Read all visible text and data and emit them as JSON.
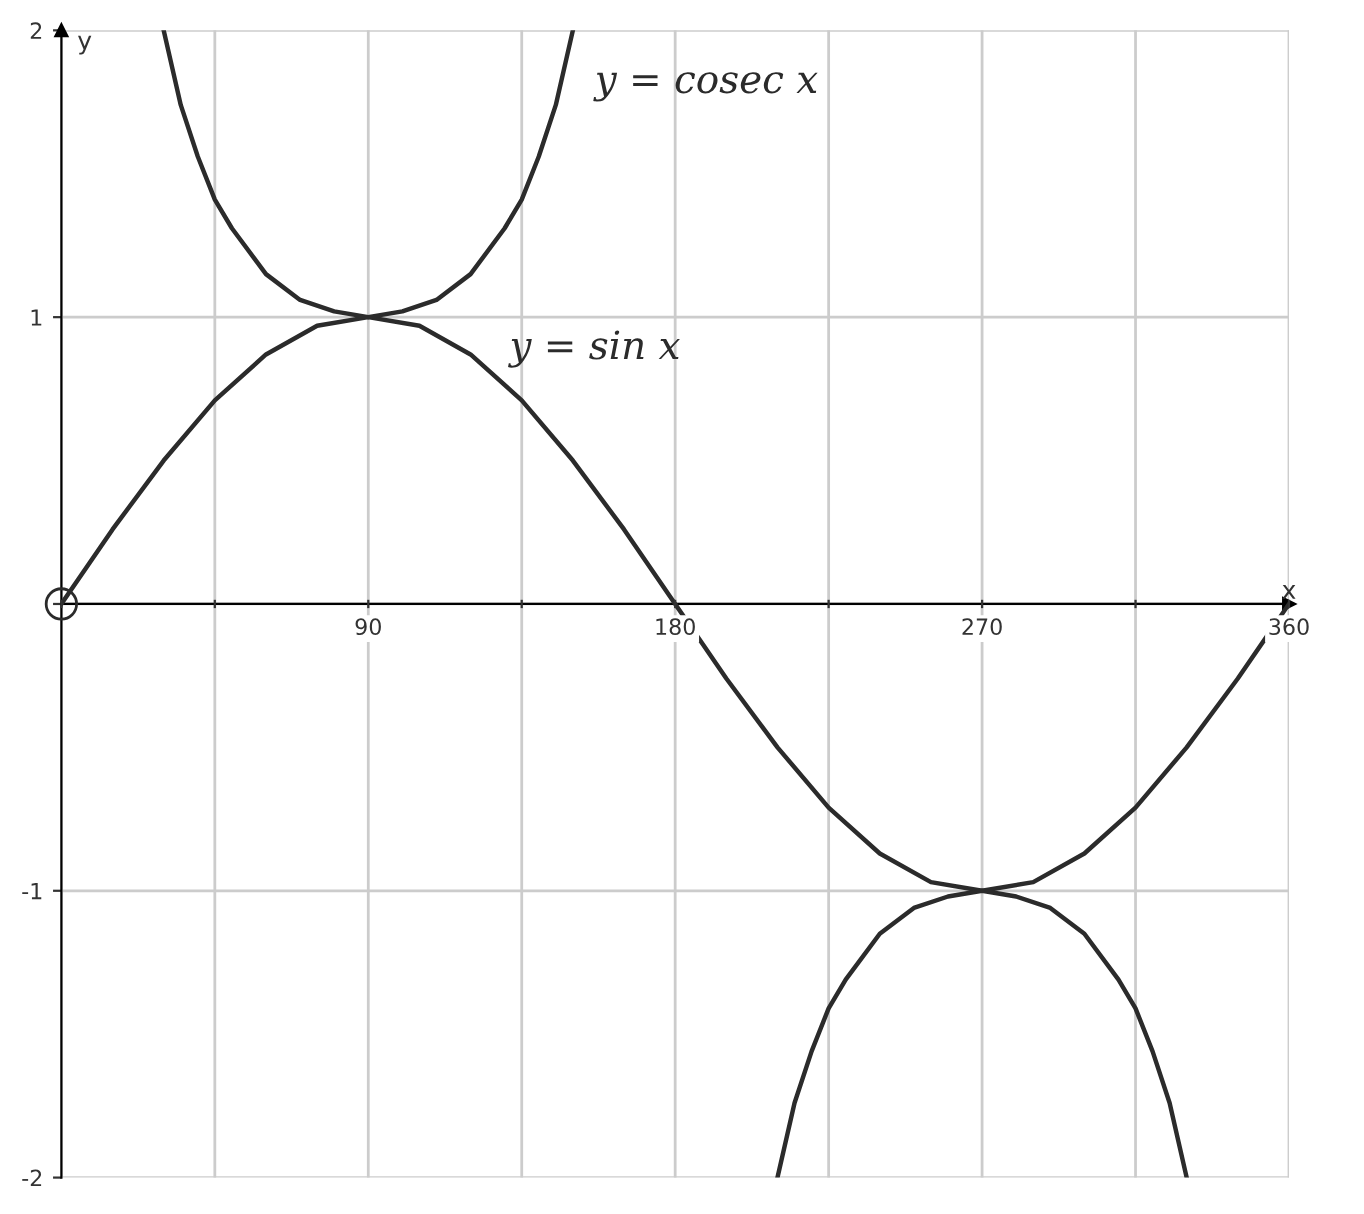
{
  "chart_data": {
    "type": "line",
    "xlabel": "x",
    "ylabel": "y",
    "xlim": [
      0,
      360
    ],
    "ylim": [
      -2,
      2
    ],
    "xticks": [
      {
        "value": 0,
        "label": null
      },
      {
        "value": 45,
        "label": null
      },
      90,
      {
        "value": 135,
        "label": null
      },
      180,
      {
        "value": 225,
        "label": null
      },
      270,
      {
        "value": 315,
        "label": null
      },
      360
    ],
    "yticks": [
      -2,
      -1,
      {
        "value": 0,
        "label": null
      },
      1,
      2
    ],
    "grid": true,
    "series": [
      {
        "name": "y = sin x",
        "color": "#2b2b2b",
        "x": [
          0,
          15,
          30,
          45,
          60,
          75,
          90,
          105,
          120,
          135,
          150,
          165,
          180,
          195,
          210,
          225,
          240,
          255,
          270,
          285,
          300,
          315,
          330,
          345,
          360
        ],
        "values": [
          0,
          0.26,
          0.5,
          0.71,
          0.87,
          0.97,
          1,
          0.97,
          0.87,
          0.71,
          0.5,
          0.26,
          0,
          -0.26,
          -0.5,
          -0.71,
          -0.87,
          -0.97,
          -1,
          -0.97,
          -0.87,
          -0.71,
          -0.5,
          -0.26,
          0
        ]
      },
      {
        "name": "y = cosec x",
        "color": "#2b2b2b",
        "x": [
          30,
          35,
          40,
          45,
          50,
          60,
          70,
          80,
          90,
          100,
          110,
          120,
          130,
          135,
          140,
          145,
          150,
          180,
          210,
          215,
          220,
          225,
          230,
          240,
          250,
          260,
          270,
          280,
          290,
          300,
          310,
          315,
          320,
          325,
          330
        ],
        "values": [
          2,
          1.74,
          1.56,
          1.41,
          1.31,
          1.15,
          1.06,
          1.02,
          1,
          1.02,
          1.06,
          1.15,
          1.31,
          1.41,
          1.56,
          1.74,
          2,
          null,
          -2,
          -1.74,
          -1.56,
          -1.41,
          -1.31,
          -1.15,
          -1.06,
          -1.02,
          -1,
          -1.02,
          -1.06,
          -1.15,
          -1.31,
          -1.41,
          -1.56,
          -1.74,
          -2
        ]
      },
      {
        "type": "scatter",
        "color": "#2b2b2b",
        "marker": "circle",
        "x": [
          0
        ],
        "values": [
          0
        ]
      }
    ]
  }
}
